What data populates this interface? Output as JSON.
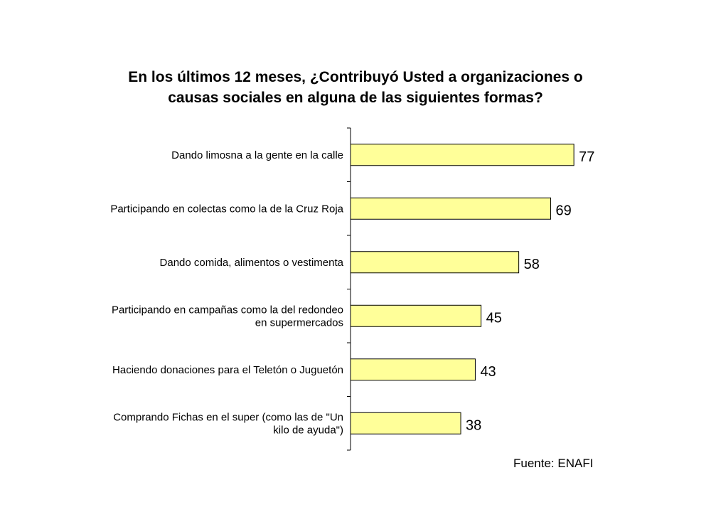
{
  "chart_data": {
    "type": "bar",
    "orientation": "horizontal",
    "title_lines": [
      "En los últimos 12 meses, ¿Contribuyó Usted a organizaciones o",
      "causas sociales en alguna de las siguientes formas?"
    ],
    "categories": [
      [
        "Dando limosna a la gente en la calle"
      ],
      [
        "Participando en colectas como la de la Cruz Roja"
      ],
      [
        "Dando comida, alimentos o vestimenta"
      ],
      [
        "Participando en campañas como la del redondeo",
        "en supermercados"
      ],
      [
        "Haciendo donaciones para el Teletón o Juguetón"
      ],
      [
        "Comprando Fichas en el super (como las de \"Un",
        "kilo de ayuda\")"
      ]
    ],
    "values": [
      77,
      69,
      58,
      45,
      43,
      38
    ],
    "xlim": [
      0,
      100
    ],
    "grid": false,
    "legend": false,
    "bar_color": "#ffff99",
    "bar_border": "#000000"
  },
  "source": "Fuente: ENAFI"
}
